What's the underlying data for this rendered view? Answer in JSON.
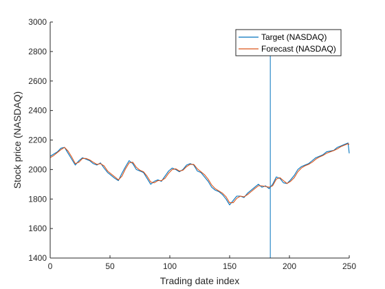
{
  "chart_data": {
    "type": "line",
    "xlabel": "Trading date index",
    "ylabel": "Stock price (NASDAQ)",
    "xlim": [
      0,
      250
    ],
    "ylim": [
      1400,
      3000
    ],
    "xticks": [
      0,
      50,
      100,
      150,
      200,
      250
    ],
    "yticks": [
      1400,
      1600,
      1800,
      2000,
      2200,
      2400,
      2600,
      2800,
      3000
    ],
    "xtick_labels": [
      "0",
      "50",
      "100",
      "150",
      "200",
      "250"
    ],
    "ytick_labels": [
      "1400",
      "1600",
      "1800",
      "2000",
      "2200",
      "2400",
      "2600",
      "2800",
      "3000"
    ],
    "grid": false,
    "legend_position": "top-right",
    "vertical_line_x": 184,
    "colors": {
      "target": "#0072BD",
      "forecast": "#D95319",
      "axis": "#262626"
    },
    "series": [
      {
        "name": "Target (NASDAQ)",
        "color": "#0072BD",
        "x": [
          0,
          3,
          6,
          9,
          12,
          15,
          18,
          21,
          24,
          27,
          30,
          33,
          36,
          39,
          42,
          45,
          48,
          51,
          54,
          57,
          60,
          63,
          66,
          69,
          72,
          75,
          78,
          81,
          84,
          87,
          90,
          93,
          96,
          99,
          102,
          105,
          108,
          111,
          114,
          117,
          120,
          123,
          126,
          129,
          132,
          135,
          138,
          141,
          144,
          147,
          150,
          153,
          156,
          159,
          162,
          165,
          168,
          171,
          174,
          177,
          180,
          183,
          186,
          189,
          192,
          195,
          198,
          201,
          204,
          207,
          210,
          213,
          216,
          219,
          222,
          225,
          228,
          231,
          234,
          237,
          240,
          243,
          246,
          249,
          250
        ],
        "y": [
          2090,
          2105,
          2120,
          2145,
          2150,
          2110,
          2070,
          2030,
          2060,
          2080,
          2070,
          2060,
          2040,
          2030,
          2045,
          2010,
          1980,
          1960,
          1940,
          1925,
          1975,
          2020,
          2060,
          2040,
          2000,
          1990,
          1980,
          1940,
          1900,
          1920,
          1930,
          1920,
          1955,
          1990,
          2010,
          2000,
          1985,
          2000,
          2030,
          2040,
          2030,
          1990,
          1980,
          1950,
          1920,
          1880,
          1860,
          1850,
          1830,
          1800,
          1760,
          1790,
          1820,
          1820,
          1810,
          1840,
          1860,
          1880,
          1900,
          1880,
          1890,
          1870,
          1900,
          1950,
          1940,
          1910,
          1905,
          1930,
          1960,
          2000,
          2020,
          2030,
          2040,
          2060,
          2080,
          2090,
          2100,
          2120,
          2125,
          2130,
          2150,
          2160,
          2170,
          2180,
          2110
        ]
      },
      {
        "name": "Forecast (NASDAQ)",
        "color": "#D95319",
        "x": [
          0,
          3,
          6,
          9,
          12,
          15,
          18,
          21,
          24,
          27,
          30,
          33,
          36,
          39,
          42,
          45,
          48,
          51,
          54,
          57,
          60,
          63,
          66,
          69,
          72,
          75,
          78,
          81,
          84,
          87,
          90,
          93,
          96,
          99,
          102,
          105,
          108,
          111,
          114,
          117,
          120,
          123,
          126,
          129,
          132,
          135,
          138,
          141,
          144,
          147,
          150,
          153,
          156,
          159,
          162,
          165,
          168,
          171,
          174,
          177,
          180,
          183,
          186,
          189,
          192,
          195,
          198,
          201,
          204,
          207,
          210,
          213,
          216,
          219,
          222,
          225,
          228,
          231,
          234,
          237,
          240,
          243,
          246,
          249,
          250
        ],
        "y": [
          2080,
          2095,
          2115,
          2135,
          2150,
          2125,
          2085,
          2040,
          2050,
          2075,
          2075,
          2065,
          2050,
          2035,
          2040,
          2025,
          1990,
          1970,
          1950,
          1930,
          1955,
          2005,
          2045,
          2050,
          2015,
          1995,
          1985,
          1955,
          1915,
          1910,
          1925,
          1925,
          1940,
          1975,
          2000,
          2005,
          1990,
          1995,
          2020,
          2035,
          2035,
          2005,
          1985,
          1965,
          1935,
          1895,
          1870,
          1855,
          1840,
          1815,
          1775,
          1775,
          1805,
          1820,
          1815,
          1830,
          1850,
          1870,
          1890,
          1890,
          1885,
          1880,
          1890,
          1935,
          1945,
          1925,
          1905,
          1920,
          1945,
          1985,
          2010,
          2025,
          2035,
          2050,
          2070,
          2085,
          2095,
          2110,
          2120,
          2128,
          2140,
          2155,
          2165,
          2175,
          2170
        ]
      }
    ]
  }
}
